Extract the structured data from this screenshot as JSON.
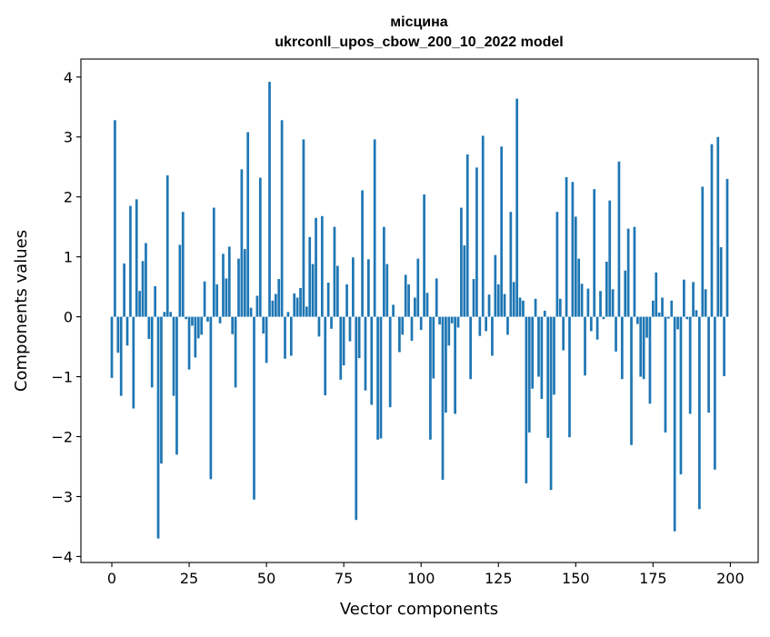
{
  "chart_data": {
    "type": "bar",
    "title_line1": "місцина",
    "title_line2": "ukrconll_upos_cbow_200_10_2022 model",
    "xlabel": "Vector components",
    "ylabel": "Components values",
    "xlim": [
      -10,
      209
    ],
    "ylim": [
      -4.1,
      4.3
    ],
    "xticks": [
      0,
      25,
      50,
      75,
      100,
      125,
      150,
      175,
      200
    ],
    "xtick_labels": [
      "0",
      "25",
      "50",
      "75",
      "100",
      "125",
      "150",
      "175",
      "200"
    ],
    "yticks": [
      -4,
      -3,
      -2,
      -1,
      0,
      1,
      2,
      3,
      4
    ],
    "ytick_labels": [
      "−4",
      "−3",
      "−2",
      "−1",
      "0",
      "1",
      "2",
      "3",
      "4"
    ],
    "bar_color": "#1f77b4",
    "x": [
      0,
      1,
      2,
      3,
      4,
      5,
      6,
      7,
      8,
      9,
      10,
      11,
      12,
      13,
      14,
      15,
      16,
      17,
      18,
      19,
      20,
      21,
      22,
      23,
      24,
      25,
      26,
      27,
      28,
      29,
      30,
      31,
      32,
      33,
      34,
      35,
      36,
      37,
      38,
      39,
      40,
      41,
      42,
      43,
      44,
      45,
      46,
      47,
      48,
      49,
      50,
      51,
      52,
      53,
      54,
      55,
      56,
      57,
      58,
      59,
      60,
      61,
      62,
      63,
      64,
      65,
      66,
      67,
      68,
      69,
      70,
      71,
      72,
      73,
      74,
      75,
      76,
      77,
      78,
      79,
      80,
      81,
      82,
      83,
      84,
      85,
      86,
      87,
      88,
      89,
      90,
      91,
      92,
      93,
      94,
      95,
      96,
      97,
      98,
      99,
      100,
      101,
      102,
      103,
      104,
      105,
      106,
      107,
      108,
      109,
      110,
      111,
      112,
      113,
      114,
      115,
      116,
      117,
      118,
      119,
      120,
      121,
      122,
      123,
      124,
      125,
      126,
      127,
      128,
      129,
      130,
      131,
      132,
      133,
      134,
      135,
      136,
      137,
      138,
      139,
      140,
      141,
      142,
      143,
      144,
      145,
      146,
      147,
      148,
      149,
      150,
      151,
      152,
      153,
      154,
      155,
      156,
      157,
      158,
      159,
      160,
      161,
      162,
      163,
      164,
      165,
      166,
      167,
      168,
      169,
      170,
      171,
      172,
      173,
      174,
      175,
      176,
      177,
      178,
      179,
      180,
      181,
      182,
      183,
      184,
      185,
      186,
      187,
      188,
      189,
      190,
      191,
      192,
      193,
      194,
      195,
      196,
      197,
      198,
      199
    ],
    "values": [
      -1.02,
      3.28,
      -0.6,
      -1.32,
      0.89,
      -0.48,
      1.85,
      -1.53,
      1.96,
      0.43,
      0.93,
      1.23,
      -0.37,
      -1.18,
      0.51,
      -3.7,
      -2.45,
      0.08,
      2.36,
      0.08,
      -1.32,
      -2.3,
      1.2,
      1.75,
      -0.04,
      -0.88,
      -0.15,
      -0.68,
      -0.36,
      -0.3,
      0.59,
      -0.08,
      -2.71,
      1.82,
      0.54,
      -0.11,
      1.05,
      0.64,
      1.17,
      -0.29,
      -1.18,
      0.97,
      2.46,
      1.13,
      3.08,
      0.15,
      -3.05,
      0.35,
      2.32,
      -0.28,
      -0.77,
      3.92,
      0.27,
      0.38,
      0.63,
      3.28,
      -0.7,
      0.08,
      -0.65,
      0.39,
      0.32,
      0.48,
      2.96,
      0.17,
      1.33,
      0.88,
      1.65,
      -0.33,
      1.68,
      -1.31,
      0.57,
      -0.2,
      1.5,
      0.85,
      -1.05,
      -0.81,
      0.54,
      -0.41,
      0.99,
      -3.39,
      -0.69,
      2.11,
      -1.23,
      0.96,
      -1.47,
      2.96,
      -2.05,
      -2.03,
      1.5,
      0.88,
      -1.51,
      0.2,
      0.0,
      -0.59,
      -0.3,
      0.7,
      0.54,
      -0.4,
      0.32,
      0.97,
      -0.22,
      2.04,
      0.4,
      -2.05,
      -1.03,
      0.64,
      -0.13,
      -2.72,
      -1.6,
      -0.48,
      -0.11,
      -1.62,
      -0.18,
      1.82,
      1.19,
      2.71,
      -1.04,
      0.63,
      2.49,
      -0.32,
      3.02,
      -0.24,
      0.37,
      -0.65,
      1.03,
      0.54,
      2.84,
      0.38,
      -0.3,
      1.75,
      0.58,
      3.64,
      0.32,
      0.27,
      -2.78,
      -1.93,
      -1.2,
      0.3,
      -1.0,
      -1.37,
      0.1,
      -2.02,
      -2.89,
      -1.3,
      1.75,
      0.3,
      -0.56,
      2.33,
      -2.01,
      2.25,
      1.67,
      0.97,
      0.55,
      -0.98,
      0.47,
      -0.24,
      2.13,
      -0.38,
      0.43,
      -0.04,
      0.92,
      1.94,
      0.46,
      -0.58,
      2.59,
      -1.04,
      0.77,
      1.47,
      -2.14,
      1.5,
      -0.12,
      -1.0,
      -1.04,
      -0.35,
      -1.45,
      0.27,
      0.74,
      0.07,
      0.32,
      -1.93,
      -0.03,
      0.27,
      -3.58,
      -0.21,
      -2.63,
      0.62,
      -0.04,
      -1.62,
      0.58,
      0.11,
      -3.21,
      2.17,
      0.46,
      -1.6,
      2.88,
      -2.55,
      3.0,
      1.16,
      -0.99,
      2.3
    ]
  }
}
